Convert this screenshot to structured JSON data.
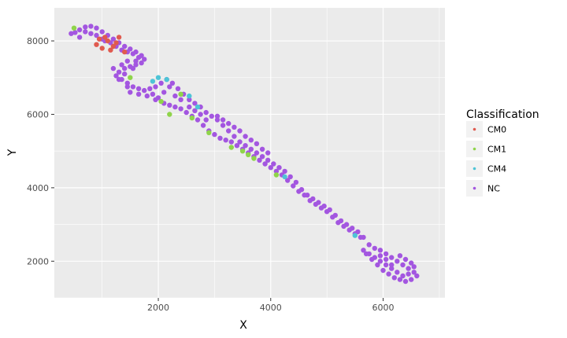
{
  "chart_data": {
    "type": "scatter",
    "xlabel": "X",
    "ylabel": "Y",
    "xlim": [
      150,
      7100
    ],
    "ylim": [
      1000,
      8900
    ],
    "x_ticks": [
      2000,
      4000,
      6000
    ],
    "y_ticks": [
      2000,
      4000,
      6000,
      8000
    ],
    "x_tick_labels": [
      "2000",
      "4000",
      "6000"
    ],
    "y_tick_labels": [
      "2000",
      "4000",
      "6000",
      "8000"
    ],
    "grid": true,
    "legend": {
      "title": "Classification",
      "placement": "right",
      "entries": [
        "CM0",
        "CM1",
        "CM4",
        "NC"
      ]
    },
    "colors": {
      "CM0": "#e05a4f",
      "CM1": "#8fd44a",
      "CM4": "#4ec4d6",
      "NC": "#a356e0",
      "panel": "#ebebeb",
      "grid": "#ffffff"
    },
    "series": [
      {
        "name": "NC",
        "points": [
          [
            450,
            8200
          ],
          [
            520,
            8230
          ],
          [
            600,
            8300
          ],
          [
            700,
            8380
          ],
          [
            800,
            8400
          ],
          [
            900,
            8350
          ],
          [
            1000,
            8250
          ],
          [
            1100,
            8150
          ],
          [
            1200,
            8050
          ],
          [
            1300,
            7950
          ],
          [
            1400,
            7850
          ],
          [
            1500,
            7780
          ],
          [
            1600,
            7700
          ],
          [
            1700,
            7600
          ],
          [
            1750,
            7500
          ],
          [
            1700,
            7400
          ],
          [
            1600,
            7350
          ],
          [
            1500,
            7300
          ],
          [
            1400,
            7250
          ],
          [
            1300,
            7150
          ],
          [
            1250,
            7050
          ],
          [
            1350,
            6950
          ],
          [
            1450,
            6850
          ],
          [
            1550,
            6750
          ],
          [
            1650,
            6700
          ],
          [
            1750,
            6650
          ],
          [
            1850,
            6700
          ],
          [
            1950,
            6750
          ],
          [
            2050,
            6850
          ],
          [
            2150,
            6950
          ],
          [
            2250,
            6850
          ],
          [
            2350,
            6700
          ],
          [
            2450,
            6550
          ],
          [
            2550,
            6400
          ],
          [
            2650,
            6300
          ],
          [
            2750,
            6200
          ],
          [
            2850,
            6050
          ],
          [
            2950,
            5950
          ],
          [
            3050,
            5850
          ],
          [
            3150,
            5700
          ],
          [
            3250,
            5550
          ],
          [
            3350,
            5400
          ],
          [
            3450,
            5250
          ],
          [
            3550,
            5150
          ],
          [
            3650,
            5050
          ],
          [
            3750,
            4950
          ],
          [
            3850,
            4850
          ],
          [
            3950,
            4750
          ],
          [
            4050,
            4650
          ],
          [
            4150,
            4550
          ],
          [
            4250,
            4450
          ],
          [
            4350,
            4300
          ],
          [
            4450,
            4150
          ],
          [
            4550,
            3950
          ],
          [
            4650,
            3800
          ],
          [
            4750,
            3700
          ],
          [
            4850,
            3600
          ],
          [
            4950,
            3500
          ],
          [
            5050,
            3400
          ],
          [
            5150,
            3250
          ],
          [
            5250,
            3100
          ],
          [
            5350,
            3000
          ],
          [
            5450,
            2900
          ],
          [
            5550,
            2800
          ],
          [
            5650,
            2650
          ],
          [
            5750,
            2450
          ],
          [
            5850,
            2350
          ],
          [
            5950,
            2300
          ],
          [
            6050,
            2200
          ],
          [
            6150,
            2100
          ],
          [
            6250,
            2000
          ],
          [
            6350,
            1900
          ],
          [
            6450,
            1800
          ],
          [
            6550,
            1700
          ],
          [
            6600,
            1600
          ],
          [
            6500,
            1500
          ],
          [
            6400,
            1450
          ],
          [
            6300,
            1500
          ],
          [
            6200,
            1550
          ],
          [
            6100,
            1650
          ],
          [
            6000,
            1750
          ],
          [
            5900,
            1900
          ],
          [
            5800,
            2050
          ],
          [
            5700,
            2200
          ],
          [
            5650,
            2300
          ],
          [
            5750,
            2200
          ],
          [
            5850,
            2100
          ],
          [
            5950,
            2000
          ],
          [
            6050,
            1900
          ],
          [
            6150,
            1800
          ],
          [
            600,
            8100
          ],
          [
            800,
            8200
          ],
          [
            1000,
            8050
          ],
          [
            1150,
            7950
          ],
          [
            1350,
            7750
          ],
          [
            1550,
            7650
          ],
          [
            1650,
            7550
          ],
          [
            1450,
            7450
          ],
          [
            1350,
            7350
          ],
          [
            1200,
            7250
          ],
          [
            1500,
            6600
          ],
          [
            1650,
            6550
          ],
          [
            1800,
            6500
          ],
          [
            1950,
            6400
          ],
          [
            2100,
            6300
          ],
          [
            2200,
            6250
          ],
          [
            2300,
            6200
          ],
          [
            2400,
            6150
          ],
          [
            2500,
            6050
          ],
          [
            2600,
            5950
          ],
          [
            2700,
            5850
          ],
          [
            2800,
            5700
          ],
          [
            2900,
            5550
          ],
          [
            3000,
            5450
          ],
          [
            3100,
            5350
          ],
          [
            3200,
            5300
          ],
          [
            3300,
            5250
          ],
          [
            3400,
            5150
          ],
          [
            3500,
            5050
          ],
          [
            3600,
            4950
          ],
          [
            3700,
            4850
          ],
          [
            3800,
            4750
          ],
          [
            3900,
            4650
          ],
          [
            4000,
            4550
          ],
          [
            4100,
            4450
          ],
          [
            4200,
            4350
          ],
          [
            4300,
            4200
          ],
          [
            4400,
            4050
          ],
          [
            4500,
            3900
          ],
          [
            4600,
            3800
          ],
          [
            4700,
            3650
          ],
          [
            4800,
            3550
          ],
          [
            4900,
            3450
          ],
          [
            5000,
            3350
          ],
          [
            5100,
            3200
          ],
          [
            5200,
            3050
          ],
          [
            5300,
            2950
          ],
          [
            5400,
            2850
          ],
          [
            5500,
            2750
          ],
          [
            5600,
            2650
          ],
          [
            2200,
            6750
          ],
          [
            2100,
            6600
          ],
          [
            2000,
            6450
          ],
          [
            1900,
            6550
          ],
          [
            2300,
            6500
          ],
          [
            2400,
            6400
          ],
          [
            2550,
            6200
          ],
          [
            2650,
            6100
          ],
          [
            2750,
            6000
          ],
          [
            2850,
            5850
          ],
          [
            3050,
            5950
          ],
          [
            3150,
            5850
          ],
          [
            3250,
            5750
          ],
          [
            3350,
            5650
          ],
          [
            3450,
            5550
          ],
          [
            3550,
            5400
          ],
          [
            3650,
            5300
          ],
          [
            3750,
            5200
          ],
          [
            3850,
            5050
          ],
          [
            3950,
            4950
          ],
          [
            6300,
            2150
          ],
          [
            6400,
            2050
          ],
          [
            6500,
            1950
          ],
          [
            6550,
            1850
          ],
          [
            6450,
            1650
          ],
          [
            6350,
            1600
          ],
          [
            6250,
            1700
          ],
          [
            6150,
            1900
          ],
          [
            6050,
            2050
          ],
          [
            5950,
            2150
          ],
          [
            700,
            8250
          ],
          [
            900,
            8150
          ],
          [
            1050,
            8000
          ],
          [
            1250,
            7850
          ],
          [
            1450,
            7700
          ],
          [
            1600,
            7450
          ],
          [
            1550,
            7250
          ],
          [
            1400,
            7100
          ],
          [
            1300,
            6950
          ],
          [
            1450,
            6750
          ]
        ]
      },
      {
        "name": "CM0",
        "points": [
          [
            900,
            7900
          ],
          [
            1000,
            7800
          ],
          [
            1100,
            8000
          ],
          [
            1200,
            7850
          ],
          [
            1300,
            8100
          ],
          [
            1150,
            7750
          ],
          [
            1050,
            8100
          ],
          [
            950,
            8050
          ],
          [
            1400,
            7700
          ],
          [
            1250,
            7950
          ]
        ]
      },
      {
        "name": "CM1",
        "points": [
          [
            500,
            8350
          ],
          [
            2600,
            5900
          ],
          [
            2200,
            6000
          ],
          [
            3500,
            5000
          ],
          [
            3700,
            4800
          ],
          [
            2400,
            6550
          ],
          [
            3300,
            5100
          ],
          [
            4100,
            4350
          ],
          [
            2900,
            5500
          ],
          [
            2050,
            6350
          ],
          [
            1500,
            7000
          ],
          [
            3600,
            4900
          ]
        ]
      },
      {
        "name": "CM4",
        "points": [
          [
            2000,
            7000
          ],
          [
            2150,
            6950
          ],
          [
            2550,
            6500
          ],
          [
            4250,
            4300
          ],
          [
            5500,
            2700
          ],
          [
            1900,
            6900
          ],
          [
            2700,
            6200
          ]
        ]
      }
    ]
  }
}
